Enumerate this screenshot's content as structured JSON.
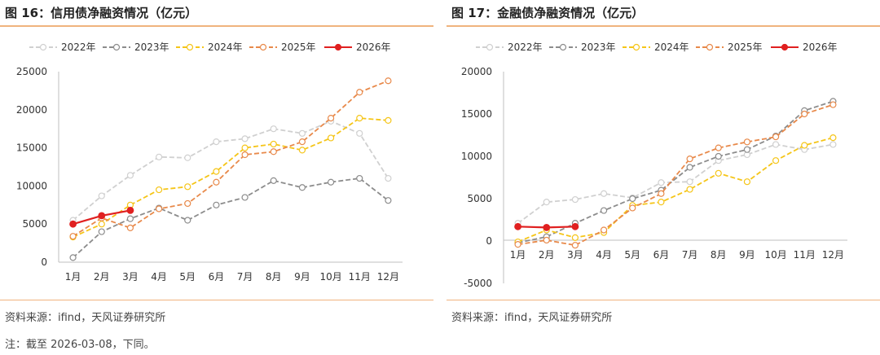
{
  "charts": [
    {
      "title": "图 16：信用债净融资情况（亿元）",
      "source": "资料来源：ifind，天风证券研究所",
      "chart_data": {
        "type": "line",
        "title": "信用债净融资情况（亿元）",
        "xlabel": "",
        "ylabel": "",
        "categories": [
          "1月",
          "2月",
          "3月",
          "4月",
          "5月",
          "6月",
          "7月",
          "8月",
          "9月",
          "10月",
          "11月",
          "12月"
        ],
        "ylim": [
          0,
          25000
        ],
        "yticks": [
          0,
          5000,
          10000,
          15000,
          20000,
          25000
        ],
        "legend": "top",
        "series": [
          {
            "name": "2022年",
            "color": "#d0d0d0",
            "style": "dashed",
            "marker": "hollow",
            "values": [
              5500,
              8700,
              11400,
              13800,
              13700,
              15800,
              16200,
              17500,
              16900,
              18500,
              16900,
              11000
            ]
          },
          {
            "name": "2023年",
            "color": "#8c8c8c",
            "style": "dashed",
            "marker": "hollow",
            "values": [
              600,
              4000,
              5700,
              7100,
              5500,
              7500,
              8500,
              10700,
              9800,
              10500,
              11000,
              8100
            ]
          },
          {
            "name": "2024年",
            "color": "#f5c518",
            "style": "dashed",
            "marker": "hollow",
            "values": [
              3300,
              5000,
              7500,
              9500,
              9900,
              11900,
              15000,
              15500,
              14700,
              16300,
              18900,
              18600
            ]
          },
          {
            "name": "2025年",
            "color": "#e8894a",
            "style": "dashed",
            "marker": "hollow",
            "values": [
              3400,
              5800,
              4500,
              7000,
              7700,
              10500,
              14100,
              14500,
              15800,
              18900,
              22300,
              23800
            ]
          },
          {
            "name": "2026年",
            "color": "#e02020",
            "style": "solid",
            "marker": "filled",
            "values": [
              5000,
              6100,
              6800,
              null,
              null,
              null,
              null,
              null,
              null,
              null,
              null,
              null
            ]
          }
        ]
      }
    },
    {
      "title": "图 17：金融债净融资情况（亿元）",
      "source": "资料来源：ifind，天风证券研究所",
      "chart_data": {
        "type": "line",
        "title": "金融债净融资情况（亿元）",
        "xlabel": "",
        "ylabel": "",
        "categories": [
          "1月",
          "2月",
          "3月",
          "4月",
          "5月",
          "6月",
          "7月",
          "8月",
          "9月",
          "10月",
          "11月",
          "12月"
        ],
        "ylim": [
          -5000,
          20000
        ],
        "yticks": [
          -5000,
          0,
          5000,
          10000,
          15000,
          20000
        ],
        "legend": "top",
        "series": [
          {
            "name": "2022年",
            "color": "#d0d0d0",
            "style": "dashed",
            "marker": "hollow",
            "values": [
              2100,
              4600,
              4900,
              5600,
              5100,
              6900,
              7000,
              9500,
              10200,
              11400,
              10800,
              11400
            ]
          },
          {
            "name": "2023年",
            "color": "#8c8c8c",
            "style": "dashed",
            "marker": "hollow",
            "values": [
              -200,
              500,
              2100,
              3600,
              5000,
              6000,
              8700,
              10000,
              10800,
              12400,
              15400,
              16500
            ]
          },
          {
            "name": "2024年",
            "color": "#f5c518",
            "style": "dashed",
            "marker": "hollow",
            "values": [
              -100,
              1300,
              400,
              1000,
              4200,
              4600,
              6100,
              8000,
              7000,
              9500,
              11300,
              12200
            ]
          },
          {
            "name": "2025年",
            "color": "#e8894a",
            "style": "dashed",
            "marker": "hollow",
            "values": [
              -400,
              100,
              -500,
              1300,
              3900,
              5600,
              9700,
              11000,
              11700,
              12300,
              15000,
              16100
            ]
          },
          {
            "name": "2026年",
            "color": "#e02020",
            "style": "solid",
            "marker": "filled",
            "values": [
              1700,
              1600,
              1700,
              null,
              null,
              null,
              null,
              null,
              null,
              null,
              null,
              null
            ]
          }
        ]
      }
    }
  ],
  "note": "注：截至 2026-03-08，下同。"
}
